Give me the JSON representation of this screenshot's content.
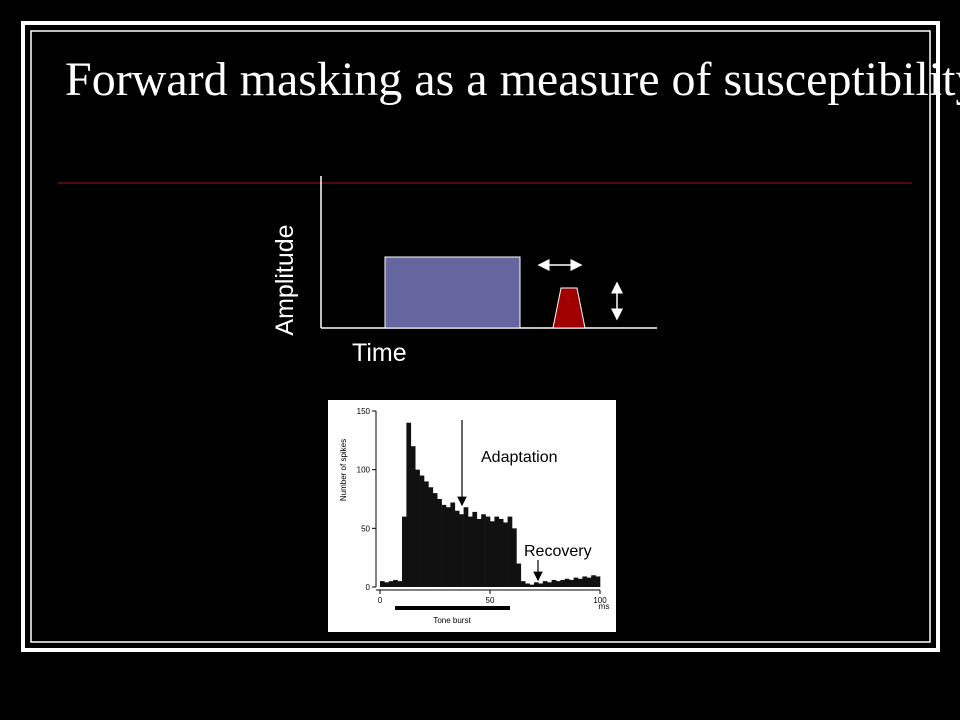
{
  "title": "Forward masking as a measure of susceptibility to adaptation",
  "diagram": {
    "y_label": "Amplitude",
    "x_label": "Time"
  },
  "figure": {
    "type": "histogram",
    "y_label": "Number of spikes",
    "x_unit": "ms",
    "bar_label": "Tone burst",
    "annotations": [
      "Adaptation",
      "Recovery"
    ],
    "xlim": [
      0,
      100
    ],
    "xticks": [
      0,
      50,
      100
    ],
    "ylim": [
      0,
      150
    ],
    "yticks": [
      0,
      50,
      100,
      150
    ],
    "bins": [
      0,
      2,
      4,
      6,
      8,
      10,
      12,
      14,
      16,
      18,
      20,
      22,
      24,
      26,
      28,
      30,
      32,
      34,
      36,
      38,
      40,
      42,
      44,
      46,
      48,
      50,
      52,
      54,
      56,
      58,
      60,
      62,
      64,
      66,
      68,
      70,
      72,
      74,
      76,
      78,
      80,
      82,
      84,
      86,
      88,
      90,
      92,
      94,
      96,
      98,
      100
    ],
    "values": [
      5,
      4,
      5,
      6,
      5,
      60,
      140,
      120,
      100,
      95,
      90,
      85,
      80,
      75,
      70,
      68,
      72,
      65,
      62,
      68,
      60,
      64,
      58,
      62,
      60,
      56,
      60,
      58,
      55,
      60,
      50,
      20,
      5,
      3,
      2,
      4,
      3,
      5,
      4,
      6,
      5,
      6,
      7,
      6,
      8,
      7,
      9,
      8,
      10,
      9
    ]
  }
}
